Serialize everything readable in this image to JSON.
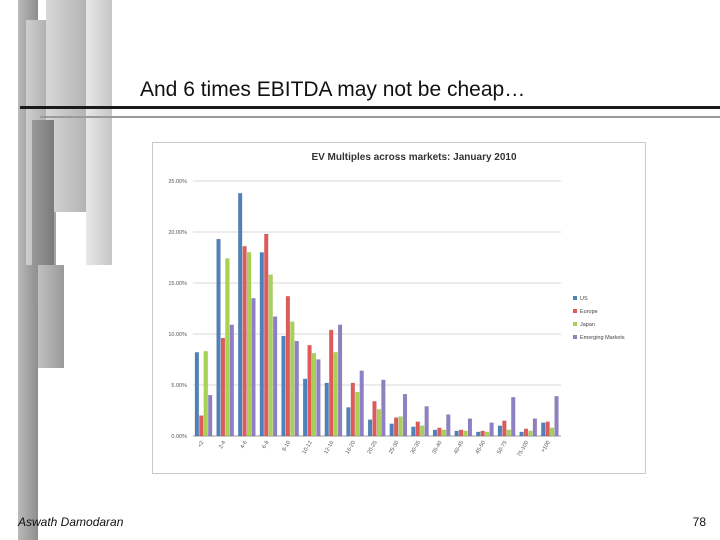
{
  "slide": {
    "title": "And 6 times EBITDA may not be cheap…",
    "author": "Aswath Damodaran",
    "page_number": "78"
  },
  "chart_data": {
    "type": "bar",
    "title": "EV Multiples across markets: January 2010",
    "xlabel": "",
    "ylabel": "",
    "ylim": [
      0,
      25
    ],
    "yticks": [
      "0.00%",
      "5.00%",
      "10.00%",
      "15.00%",
      "20.00%",
      "25.00%"
    ],
    "grid": true,
    "legend_position": "right",
    "categories": [
      "<2",
      "2-4",
      "4-6",
      "6-8",
      "8-10",
      "10-12",
      "12-16",
      "16-20",
      "20-25",
      "25-30",
      "30-35",
      "35-40",
      "40-45",
      "45-50",
      "50-75",
      "75-100",
      ">100"
    ],
    "series": [
      {
        "name": "US",
        "color": "#4f81bd",
        "values": [
          8.2,
          19.3,
          23.8,
          18.0,
          9.8,
          5.6,
          5.2,
          2.8,
          1.6,
          1.2,
          0.9,
          0.6,
          0.5,
          0.4,
          1.0,
          0.4,
          1.3
        ]
      },
      {
        "name": "Europe",
        "color": "#e05a5a",
        "values": [
          2.0,
          9.6,
          18.6,
          19.8,
          13.7,
          8.9,
          10.4,
          5.2,
          3.4,
          1.8,
          1.4,
          0.8,
          0.6,
          0.5,
          1.5,
          0.7,
          1.4
        ]
      },
      {
        "name": "Japan",
        "color": "#a9d152",
        "values": [
          8.3,
          17.4,
          18.0,
          15.8,
          11.2,
          8.1,
          8.2,
          4.3,
          2.6,
          1.9,
          1.0,
          0.6,
          0.5,
          0.4,
          0.6,
          0.5,
          0.8
        ]
      },
      {
        "name": "Emerging Markets",
        "color": "#8f7fc4",
        "values": [
          4.0,
          10.9,
          13.5,
          11.7,
          9.3,
          7.5,
          10.9,
          6.4,
          5.5,
          4.1,
          2.9,
          2.1,
          1.7,
          1.3,
          3.8,
          1.7,
          3.9
        ]
      }
    ]
  }
}
